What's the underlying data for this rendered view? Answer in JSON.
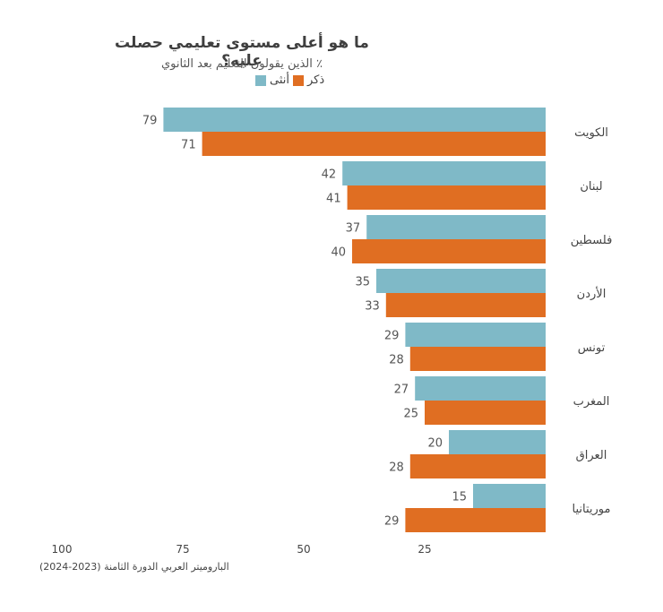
{
  "chart_data": {
    "type": "bar",
    "orientation": "horizontal",
    "title": "ما هو أعلى مستوى تعليمي حصلت عليه؟",
    "subtitle": "٪ الذين يقولون التعليم بعد الثانوي",
    "categories": [
      "الكويت",
      "لبنان",
      "فلسطين",
      "الأردن",
      "تونس",
      "المغرب",
      "العراق",
      "موريتانيا"
    ],
    "series": [
      {
        "name": "أنثى",
        "color": "#7fb9c7",
        "values": [
          79,
          42,
          37,
          35,
          29,
          27,
          20,
          15
        ]
      },
      {
        "name": "ذكر",
        "color": "#e06e22",
        "values": [
          71,
          41,
          40,
          33,
          28,
          25,
          28,
          29
        ]
      }
    ],
    "xlim": [
      0,
      100
    ],
    "x_ticks": [
      100,
      75,
      50,
      25
    ],
    "x_reversed": true,
    "grid": false,
    "legend_position": "top",
    "source": "الباروميتر العربي الدورة الثامنة (2023-2024)"
  }
}
